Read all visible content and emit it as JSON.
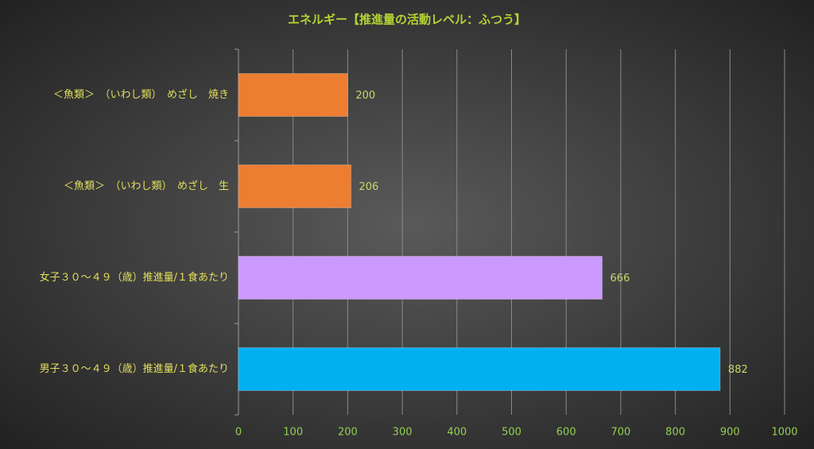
{
  "chart_data": {
    "type": "bar",
    "orientation": "horizontal",
    "title": "エネルギー【推進量の活動レベル：ふつう】",
    "categories": [
      "＜魚類＞　（いわし類）　めざし　焼き",
      "＜魚類＞　（いわし類）　めざし　生",
      "女子３０～４９（歳）推進量/１食あたり",
      "男子３０～４９（歳）推進量/１食あたり"
    ],
    "values": [
      200,
      206,
      666,
      882
    ],
    "colors": [
      "#ed7d31",
      "#ed7d31",
      "#cc99ff",
      "#00b0f0"
    ],
    "xlim": [
      0,
      1000
    ],
    "xticks": [
      0,
      100,
      200,
      300,
      400,
      500,
      600,
      700,
      800,
      900,
      1000
    ],
    "grid": true
  }
}
